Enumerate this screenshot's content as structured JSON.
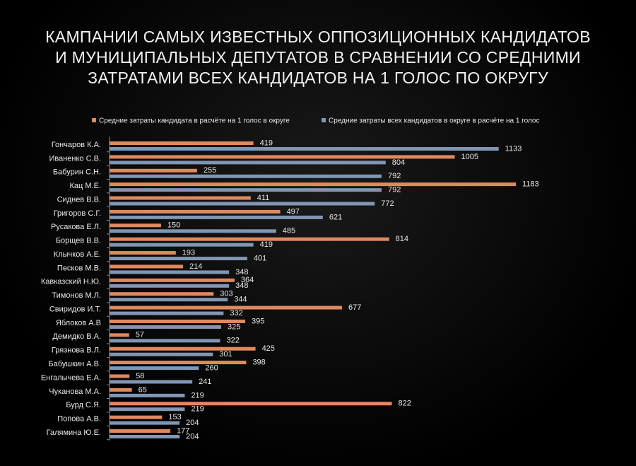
{
  "chart_data": {
    "type": "bar",
    "orientation": "horizontal",
    "title": "КАМПАНИИ САМЫХ ИЗВЕСТНЫХ ОППОЗИЦИОННЫХ КАНДИДАТОВ И МУНИЦИПАЛЬНЫХ ДЕПУТАТОВ В СРАВНЕНИИ СО СРЕДНИМИ ЗАТРАТАМИ ВСЕХ КАНДИДАТОВ НА 1 ГОЛОС ПО ОКРУГУ",
    "categories": [
      "Гончаров К.А.",
      "Иваненко С.В.",
      "Бабурин С.Н.",
      "Кац М.Е.",
      "Сиднев В.В.",
      "Григоров С.Г.",
      "Русакова Е.Л.",
      "Борщев В.В.",
      "Клычков А.Е.",
      "Песков М.В.",
      "Кавказский Н.Ю.",
      "Тимонов М.Л.",
      "Свиридов И.Т.",
      "Яблоков А.В",
      "Демидко В.А.",
      "Грязнова В.Л.",
      "Бабушкин А.В.",
      "Енгалычева Е.А.",
      "Чуканова М.А.",
      "Бурд С.Я.",
      "Попова А.В.",
      "Галямина Ю.Е."
    ],
    "series": [
      {
        "name": "Средние затраты кандидата в расчёте на 1 голос в округе",
        "color": "#e0895f",
        "values": [
          419,
          1005,
          255,
          1183,
          411,
          497,
          150,
          814,
          193,
          214,
          364,
          303,
          677,
          395,
          57,
          425,
          398,
          58,
          65,
          822,
          153,
          177
        ]
      },
      {
        "name": "Средние затраты всех кандидатов в округе в расчёте на 1 голос",
        "color": "#8096b3",
        "values": [
          1133,
          804,
          792,
          792,
          772,
          621,
          485,
          419,
          401,
          348,
          348,
          344,
          332,
          325,
          322,
          301,
          260,
          241,
          219,
          219,
          204,
          204
        ]
      }
    ],
    "legend": "top"
  }
}
